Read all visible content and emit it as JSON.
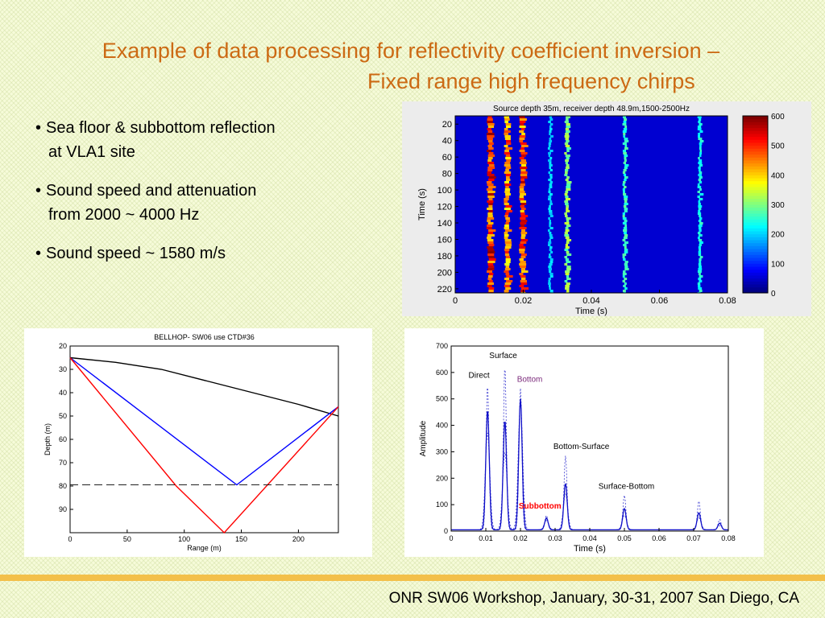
{
  "title": {
    "line1": "Example of data processing for reflectivity coefficient inversion –",
    "line2": "Fixed range high frequency chirps"
  },
  "bullets": [
    {
      "line1": "Sea floor & subbottom reflection",
      "line2": "at VLA1 site"
    },
    {
      "line1": "Sound speed and attenuation",
      "line2": "from 2000 ~ 4000 Hz"
    },
    {
      "line1": "Sound speed ~ 1580 m/s",
      "line2": ""
    }
  ],
  "bullet_glyph": "•",
  "footer": "ONR SW06 Workshop, January, 30-31, 2007  San Diego, CA",
  "colors": {
    "title": "#cc6a14",
    "footer_bar": "#f3c04a",
    "background": "#f6fbd9"
  },
  "chart_data": [
    {
      "type": "heatmap",
      "title": "Source depth 35m, receiver depth 48.9m,1500-2500Hz",
      "xlabel": "Time (s)",
      "ylabel": "Time (s)",
      "xlim": [
        0,
        0.08
      ],
      "ylim": [
        225,
        10
      ],
      "x_ticks": [
        "0",
        "0.02",
        "0.04",
        "0.06",
        "0.08"
      ],
      "y_ticks": [
        "20",
        "40",
        "60",
        "80",
        "100",
        "120",
        "140",
        "160",
        "180",
        "200",
        "220"
      ],
      "colorbar": {
        "min": 0,
        "max": 600,
        "ticks": [
          "0",
          "100",
          "200",
          "300",
          "400",
          "500",
          "600"
        ]
      },
      "arrivals_s": [
        {
          "time": 0.0105,
          "strength": 1.0
        },
        {
          "time": 0.0155,
          "strength": 0.85
        },
        {
          "time": 0.02,
          "strength": 0.95
        },
        {
          "time": 0.033,
          "strength": 0.45
        },
        {
          "time": 0.05,
          "strength": 0.3
        },
        {
          "time": 0.072,
          "strength": 0.25
        },
        {
          "time": 0.028,
          "strength": 0.15
        }
      ]
    },
    {
      "type": "line",
      "title": "BELLHOP- SW06 use CTD#36",
      "xlabel": "Range (m)",
      "ylabel": "Depth (m)",
      "xlim": [
        0,
        235
      ],
      "ylim": [
        100,
        20
      ],
      "x_ticks": [
        "0",
        "50",
        "100",
        "150",
        "200"
      ],
      "y_ticks": [
        "20",
        "30",
        "40",
        "50",
        "60",
        "70",
        "80",
        "90"
      ],
      "series": [
        {
          "color": "#000000",
          "x": [
            0,
            40,
            80,
            120,
            160,
            200,
            235
          ],
          "y": [
            25,
            27,
            30,
            35,
            40,
            45,
            50
          ]
        },
        {
          "color": "#0000ff",
          "x": [
            0,
            146,
            235
          ],
          "y": [
            25,
            79.5,
            46
          ]
        },
        {
          "color": "#ff0000",
          "x": [
            0,
            93,
            135,
            235
          ],
          "y": [
            25,
            80,
            100,
            46
          ]
        },
        {
          "color": "#000000",
          "dashed": true,
          "x": [
            0,
            235
          ],
          "y": [
            79.5,
            79.5
          ]
        }
      ]
    },
    {
      "type": "line",
      "title": "",
      "xlabel": "Time (s)",
      "ylabel": "Amplitude",
      "xlim": [
        0,
        0.08
      ],
      "ylim": [
        0,
        700
      ],
      "x_ticks": [
        "0",
        "0.01",
        "0.02",
        "0.03",
        "0.04",
        "0.05",
        "0.06",
        "0.07",
        "0.08"
      ],
      "y_ticks": [
        "0",
        "100",
        "200",
        "300",
        "400",
        "500",
        "600",
        "700"
      ],
      "baseline": 5,
      "peaks": [
        {
          "t": 0.0105,
          "solid": 460,
          "dash_hi": 555,
          "dash_lo": 375
        },
        {
          "t": 0.0155,
          "solid": 420,
          "dash_hi": 625,
          "dash_lo": 300
        },
        {
          "t": 0.02,
          "solid": 500,
          "dash_hi": 540,
          "dash_lo": 485
        },
        {
          "t": 0.0275,
          "solid": 50,
          "dash_hi": 60,
          "dash_lo": 40
        },
        {
          "t": 0.033,
          "solid": 180,
          "dash_hi": 285,
          "dash_lo": 140
        },
        {
          "t": 0.05,
          "solid": 85,
          "dash_hi": 135,
          "dash_lo": 60
        },
        {
          "t": 0.0715,
          "solid": 70,
          "dash_hi": 115,
          "dash_lo": 50
        },
        {
          "t": 0.0775,
          "solid": 30,
          "dash_hi": 45,
          "dash_lo": 20
        }
      ],
      "annotations": [
        {
          "text": "Direct",
          "x": 0.005,
          "y": 580,
          "color": "#000000"
        },
        {
          "text": "Surface",
          "x": 0.011,
          "y": 655,
          "color": "#000000"
        },
        {
          "text": "Bottom",
          "x": 0.019,
          "y": 565,
          "color": "#7b2a7b"
        },
        {
          "text": "Bottom-Surface",
          "x": 0.0295,
          "y": 310,
          "color": "#000000"
        },
        {
          "text": "Surface-Bottom",
          "x": 0.0425,
          "y": 160,
          "color": "#000000"
        },
        {
          "text": "Subbottom",
          "x": 0.0195,
          "y": 85,
          "color": "#ff0000",
          "bold": true
        }
      ]
    }
  ]
}
